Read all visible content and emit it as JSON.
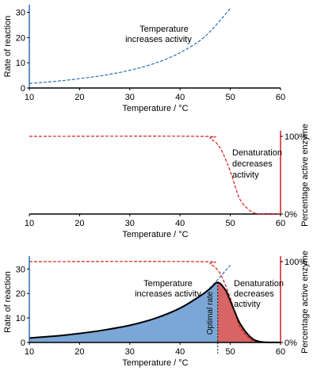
{
  "colors": {
    "rate": "#2b6fb3",
    "active": "#d11f1f",
    "blue_fill": "#7ba7d6",
    "red_fill": "#d86464",
    "axis": "#000000"
  },
  "chart_data": [
    {
      "type": "line",
      "xlabel": "Temperature / °C",
      "ylabel": "Rate of reaction",
      "xlim": [
        10,
        60
      ],
      "ylim": [
        0,
        33
      ],
      "xticks": [
        "10",
        "20",
        "30",
        "40",
        "50",
        "60"
      ],
      "yticks": [
        "0",
        "10",
        "20",
        "30"
      ],
      "annotations": [
        "Temperature",
        "increases activity"
      ],
      "series": [
        {
          "style": "dashed",
          "x": [
            10,
            15,
            20,
            25,
            30,
            35,
            40,
            45,
            50
          ],
          "y": [
            1.8,
            2.6,
            3.7,
            5.1,
            7.0,
            9.8,
            14.0,
            20.5,
            31.5
          ]
        }
      ]
    },
    {
      "type": "line",
      "xlabel": "Temperature / °C",
      "ylabel_right": "Percentage active enzyme",
      "xlim": [
        10,
        60
      ],
      "ylim": [
        0,
        100
      ],
      "xticks": [
        "10",
        "20",
        "30",
        "40",
        "50",
        "60"
      ],
      "yticks_right": [
        "0%",
        "100%"
      ],
      "annotations": [
        "Denaturation",
        "decreases",
        "activity"
      ],
      "series": [
        {
          "style": "dashed",
          "x": [
            10,
            44,
            46,
            48,
            50,
            51,
            52,
            54,
            56,
            60
          ],
          "y": [
            100,
            100,
            97,
            85,
            55,
            35,
            18,
            4,
            0,
            0
          ]
        }
      ]
    },
    {
      "type": "area",
      "xlabel": "Temperature / °C",
      "ylabel": "Rate of reaction",
      "ylabel_right": "Percentage active enzyme",
      "xlim": [
        10,
        60
      ],
      "ylim": [
        0,
        33
      ],
      "xticks": [
        "10",
        "20",
        "30",
        "40",
        "50",
        "60"
      ],
      "yticks": [
        "0",
        "10",
        "20",
        "30"
      ],
      "yticks_right": [
        "0%",
        "100%"
      ],
      "annotations": [
        "Temperature",
        "increases activity",
        "Denaturation",
        "decreases",
        "activity",
        "Optimal rate"
      ],
      "optimum_x": 47.5,
      "series": [
        {
          "style": "solid",
          "x": [
            10,
            15,
            20,
            25,
            30,
            35,
            40,
            44,
            46,
            47.5,
            49,
            50,
            51,
            52,
            54,
            56,
            60
          ],
          "y": [
            1.8,
            2.6,
            3.7,
            5.1,
            7.0,
            9.8,
            14.0,
            19.0,
            22.0,
            24.5,
            21.5,
            17.0,
            12.0,
            7.5,
            2.2,
            0.3,
            0
          ]
        }
      ]
    }
  ]
}
